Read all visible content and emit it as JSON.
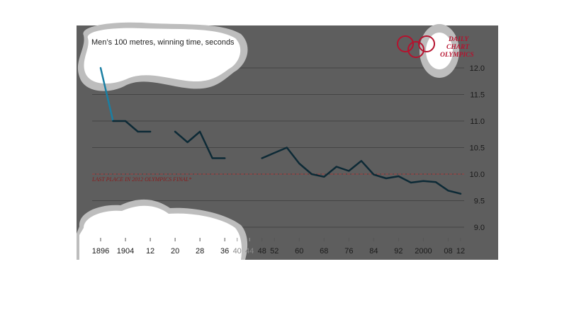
{
  "chart_data": {
    "type": "line",
    "title": "Men’s 100 metres, winning time, seconds",
    "x": [
      1896,
      1900,
      1904,
      1908,
      1912,
      1920,
      1924,
      1928,
      1932,
      1936,
      1948,
      1952,
      1956,
      1960,
      1964,
      1968,
      1972,
      1976,
      1980,
      1984,
      1988,
      1992,
      1996,
      2000,
      2004,
      2008,
      2012
    ],
    "y": [
      12.0,
      11.0,
      11.0,
      10.8,
      10.8,
      10.8,
      10.6,
      10.8,
      10.3,
      10.3,
      10.3,
      10.4,
      10.5,
      10.2,
      10.0,
      9.95,
      10.14,
      10.06,
      10.25,
      9.99,
      9.92,
      9.96,
      9.84,
      9.87,
      9.85,
      9.69,
      9.63
    ],
    "segments": [
      [
        1896,
        1912
      ],
      [
        1920,
        1936
      ],
      [
        1948,
        2012
      ]
    ],
    "first_segment_color": "#1a7fa3",
    "line_color": "#0d2a36",
    "background": "#5e5e5e",
    "ylim": [
      8.9,
      12.3
    ],
    "yticks": [
      "12.0",
      "11.5",
      "11.0",
      "10.5",
      "10.0",
      "9.5",
      "9.0"
    ],
    "xtick_labels": [
      {
        "year": 1896,
        "label": "1896",
        "faint": false
      },
      {
        "year": 1904,
        "label": "1904",
        "faint": false
      },
      {
        "year": 1912,
        "label": "12",
        "faint": false
      },
      {
        "year": 1920,
        "label": "20",
        "faint": false
      },
      {
        "year": 1928,
        "label": "28",
        "faint": false
      },
      {
        "year": 1936,
        "label": "36",
        "faint": false
      },
      {
        "year": 1940,
        "label": "40",
        "faint": true
      },
      {
        "year": 1944,
        "label": "44",
        "faint": true
      },
      {
        "year": 1948,
        "label": "48",
        "faint": false
      },
      {
        "year": 1952,
        "label": "52",
        "faint": false
      },
      {
        "year": 1960,
        "label": "60",
        "faint": false
      },
      {
        "year": 1968,
        "label": "68",
        "faint": false
      },
      {
        "year": 1976,
        "label": "76",
        "faint": false
      },
      {
        "year": 1984,
        "label": "84",
        "faint": false
      },
      {
        "year": 1992,
        "label": "92",
        "faint": false
      },
      {
        "year": 2000,
        "label": "2000",
        "faint": false
      },
      {
        "year": 2008,
        "label": "08",
        "faint": false
      },
      {
        "year": 2012,
        "label": "12",
        "faint": false
      }
    ],
    "reference_line": {
      "value": 10.0,
      "label": "LAST PLACE IN 2012 OLYMPICS FINAL*",
      "color": "#a33a3a"
    },
    "grid": true
  },
  "logo": {
    "line1": "DAILY",
    "line2": "CHART",
    "line3": "OLYMPICS",
    "ring_color": "#b5122e"
  }
}
